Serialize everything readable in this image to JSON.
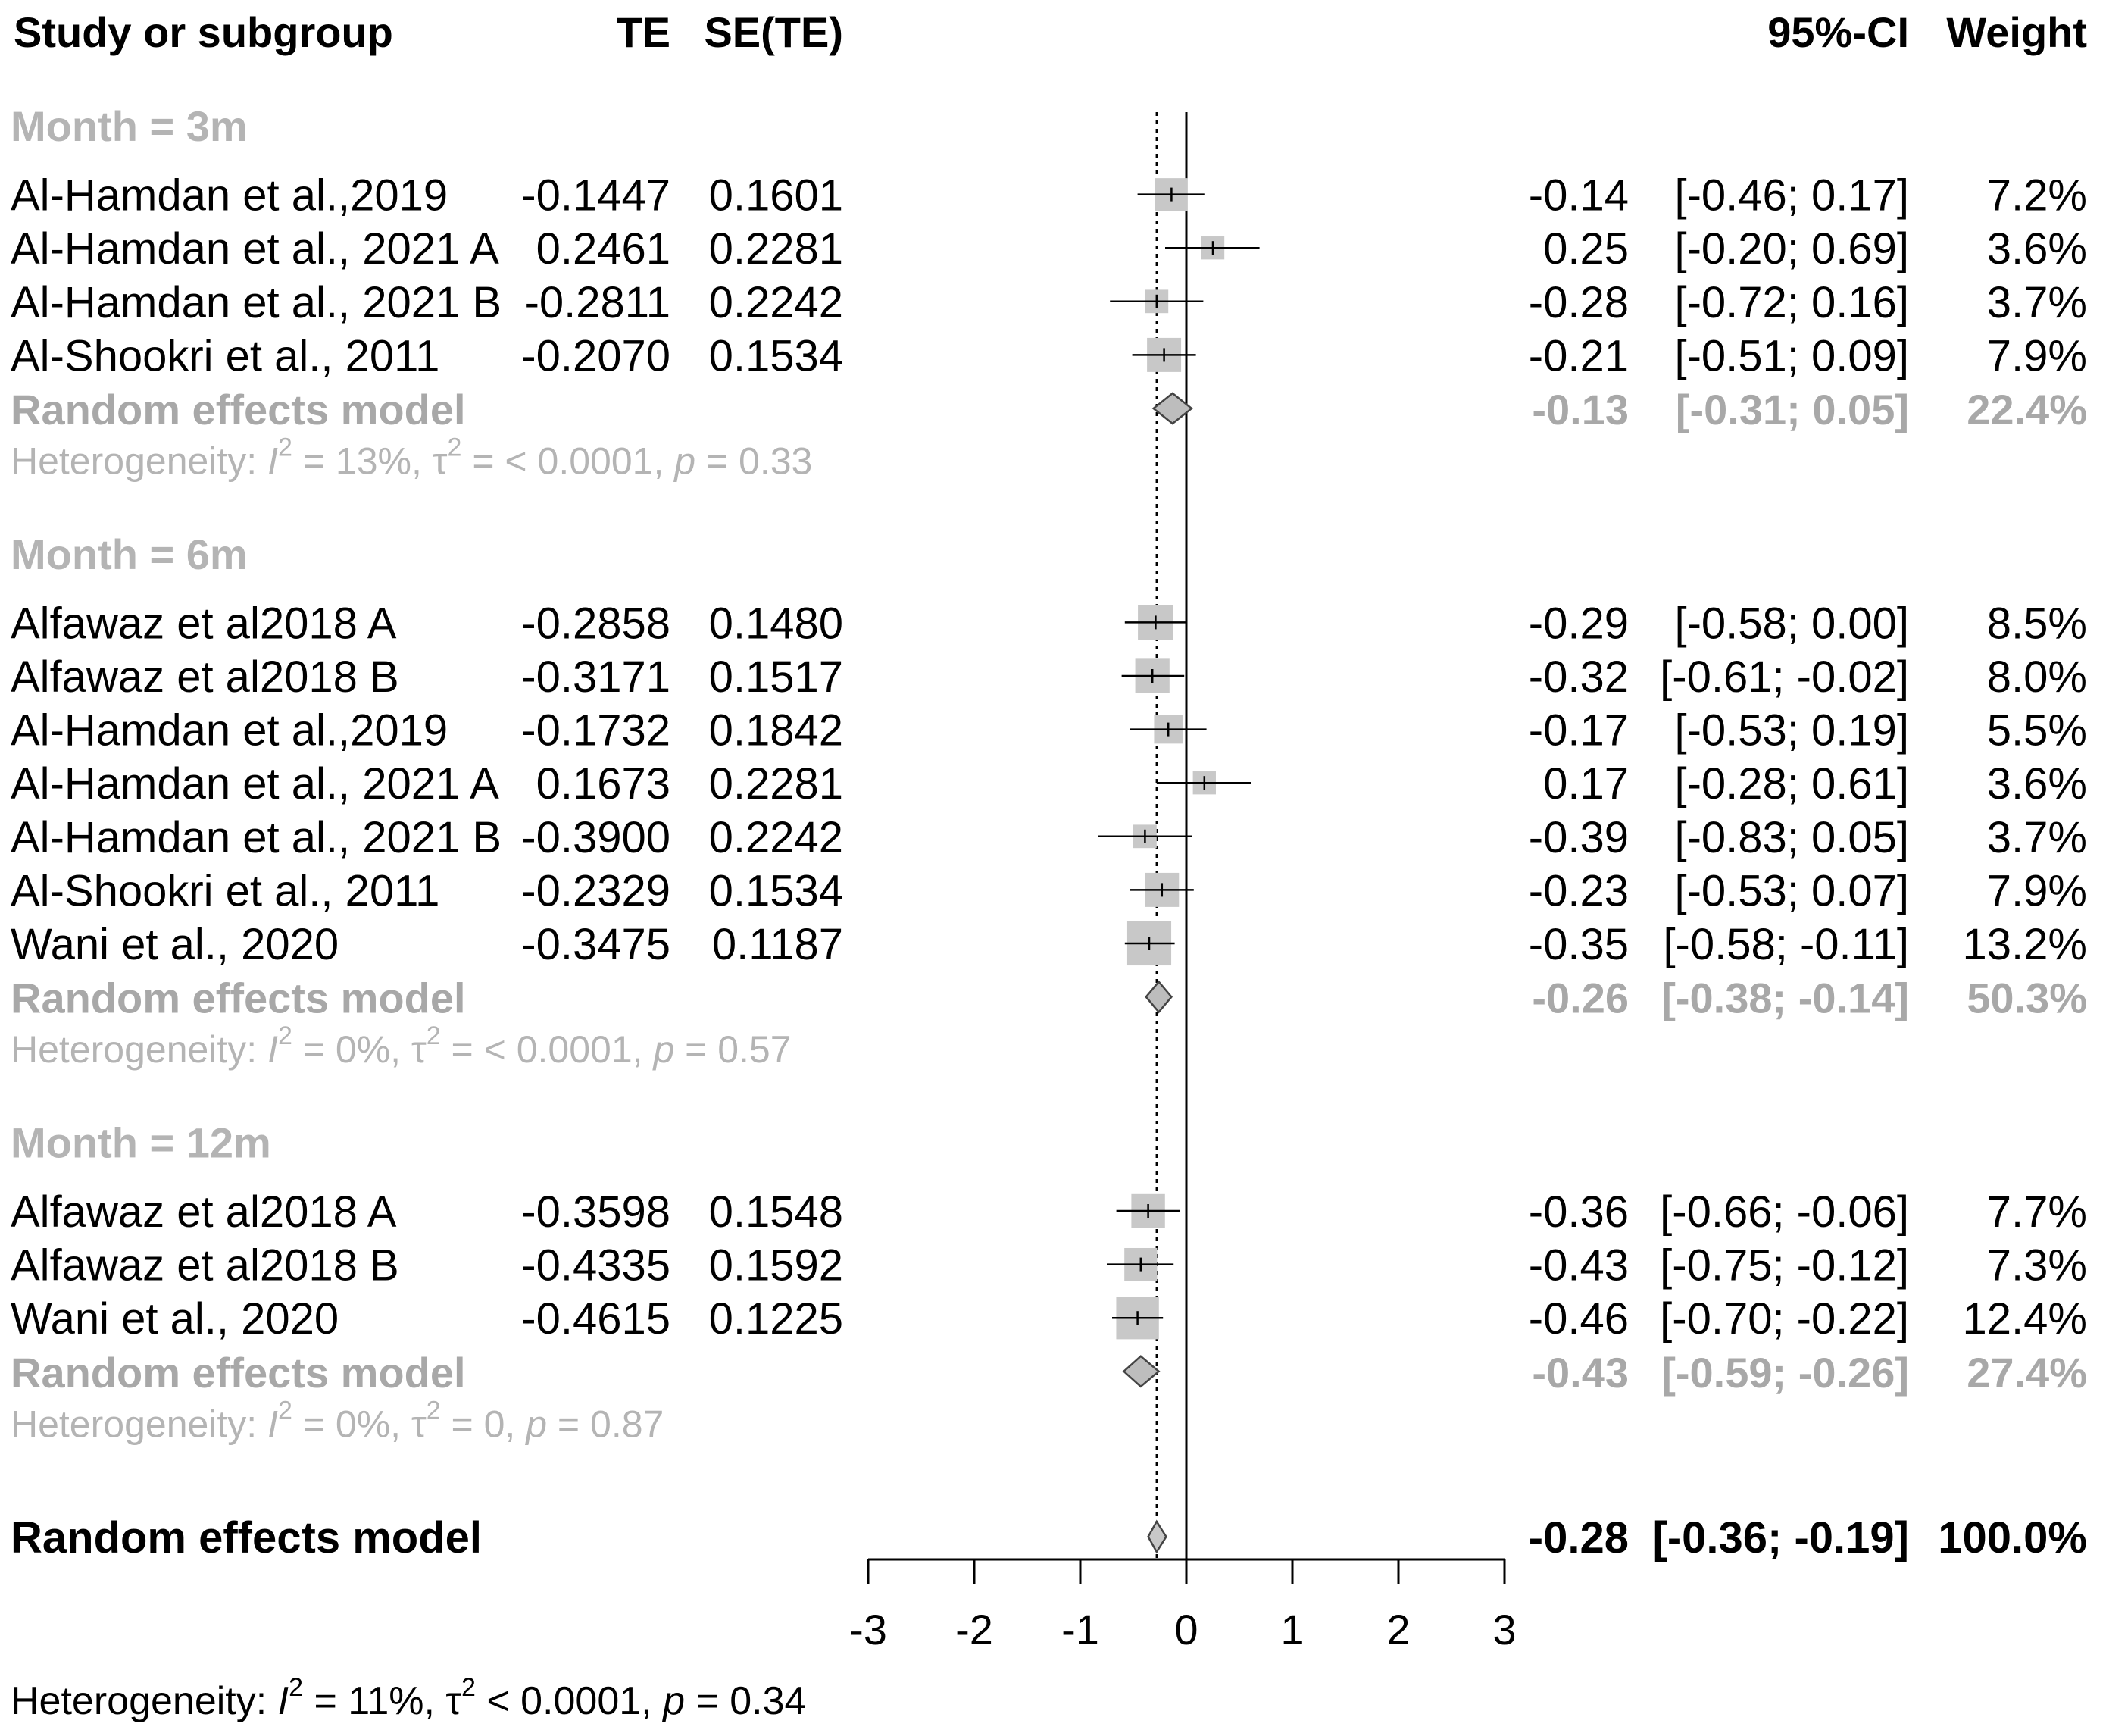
{
  "chart_data": {
    "type": "forest",
    "columns": {
      "study": "Study or subgroup",
      "te": "TE",
      "se": "SE(TE)",
      "ci": "95%-CI",
      "weight": "Weight"
    },
    "axis": {
      "range": [
        -3,
        3
      ],
      "ticks": [
        "-3",
        "-2",
        "-1",
        "0",
        "1",
        "2",
        "3"
      ],
      "reference_line": 0,
      "pooled_line": -0.28
    },
    "subgroups": [
      {
        "label": "Month = 3m",
        "studies": [
          {
            "name": "Al-Hamdan et al.,2019",
            "te": "-0.1447",
            "se": "0.1601",
            "est": "-0.14",
            "ci": "[-0.46;  0.17]",
            "weight": "7.2%",
            "mean": -0.14,
            "lo": -0.46,
            "hi": 0.17,
            "w": 7.2
          },
          {
            "name": "Al-Hamdan et al., 2021 A",
            "te": "0.2461",
            "se": "0.2281",
            "est": "0.25",
            "ci": "[-0.20;  0.69]",
            "weight": "3.6%",
            "mean": 0.25,
            "lo": -0.2,
            "hi": 0.69,
            "w": 3.6
          },
          {
            "name": "Al-Hamdan et al., 2021 B",
            "te": "-0.2811",
            "se": "0.2242",
            "est": "-0.28",
            "ci": "[-0.72;  0.16]",
            "weight": "3.7%",
            "mean": -0.28,
            "lo": -0.72,
            "hi": 0.16,
            "w": 3.7
          },
          {
            "name": "Al-Shookri et al., 2011",
            "te": "-0.2070",
            "se": "0.1534",
            "est": "-0.21",
            "ci": "[-0.51;  0.09]",
            "weight": "7.9%",
            "mean": -0.21,
            "lo": -0.51,
            "hi": 0.09,
            "w": 7.9
          }
        ],
        "pooled": {
          "label": "Random effects model",
          "est": "-0.13",
          "ci": "[-0.31;  0.05]",
          "weight": "22.4%",
          "mean": -0.13,
          "lo": -0.31,
          "hi": 0.05
        },
        "heterogeneity": {
          "prefix": "Heterogeneity: ",
          "I2": " = 13%, ",
          "tau2": " = < 0.0001, ",
          "p": " = 0.33"
        }
      },
      {
        "label": "Month = 6m",
        "studies": [
          {
            "name": "Alfawaz et al2018 A",
            "te": "-0.2858",
            "se": "0.1480",
            "est": "-0.29",
            "ci": "[-0.58;  0.00]",
            "weight": "8.5%",
            "mean": -0.29,
            "lo": -0.58,
            "hi": 0.0,
            "w": 8.5
          },
          {
            "name": "Alfawaz et al2018 B",
            "te": "-0.3171",
            "se": "0.1517",
            "est": "-0.32",
            "ci": "[-0.61; -0.02]",
            "weight": "8.0%",
            "mean": -0.32,
            "lo": -0.61,
            "hi": -0.02,
            "w": 8.0
          },
          {
            "name": "Al-Hamdan et al.,2019",
            "te": "-0.1732",
            "se": "0.1842",
            "est": "-0.17",
            "ci": "[-0.53;  0.19]",
            "weight": "5.5%",
            "mean": -0.17,
            "lo": -0.53,
            "hi": 0.19,
            "w": 5.5
          },
          {
            "name": "Al-Hamdan et al., 2021 A",
            "te": "0.1673",
            "se": "0.2281",
            "est": "0.17",
            "ci": "[-0.28;  0.61]",
            "weight": "3.6%",
            "mean": 0.17,
            "lo": -0.28,
            "hi": 0.61,
            "w": 3.6
          },
          {
            "name": "Al-Hamdan et al., 2021 B",
            "te": "-0.3900",
            "se": "0.2242",
            "est": "-0.39",
            "ci": "[-0.83;  0.05]",
            "weight": "3.7%",
            "mean": -0.39,
            "lo": -0.83,
            "hi": 0.05,
            "w": 3.7
          },
          {
            "name": "Al-Shookri et al., 2011",
            "te": "-0.2329",
            "se": "0.1534",
            "est": "-0.23",
            "ci": "[-0.53;  0.07]",
            "weight": "7.9%",
            "mean": -0.23,
            "lo": -0.53,
            "hi": 0.07,
            "w": 7.9
          },
          {
            "name": "Wani et al., 2020",
            "te": "-0.3475",
            "se": "0.1187",
            "est": "-0.35",
            "ci": "[-0.58; -0.11]",
            "weight": "13.2%",
            "mean": -0.35,
            "lo": -0.58,
            "hi": -0.11,
            "w": 13.2
          }
        ],
        "pooled": {
          "label": "Random effects model",
          "est": "-0.26",
          "ci": "[-0.38; -0.14]",
          "weight": "50.3%",
          "mean": -0.26,
          "lo": -0.38,
          "hi": -0.14
        },
        "heterogeneity": {
          "prefix": "Heterogeneity: ",
          "I2": " = 0%, ",
          "tau2": " = < 0.0001, ",
          "p": " = 0.57"
        }
      },
      {
        "label": "Month = 12m",
        "studies": [
          {
            "name": "Alfawaz et al2018 A",
            "te": "-0.3598",
            "se": "0.1548",
            "est": "-0.36",
            "ci": "[-0.66; -0.06]",
            "weight": "7.7%",
            "mean": -0.36,
            "lo": -0.66,
            "hi": -0.06,
            "w": 7.7
          },
          {
            "name": "Alfawaz et al2018 B",
            "te": "-0.4335",
            "se": "0.1592",
            "est": "-0.43",
            "ci": "[-0.75; -0.12]",
            "weight": "7.3%",
            "mean": -0.43,
            "lo": -0.75,
            "hi": -0.12,
            "w": 7.3
          },
          {
            "name": "Wani et al., 2020",
            "te": "-0.4615",
            "se": "0.1225",
            "est": "-0.46",
            "ci": "[-0.70; -0.22]",
            "weight": "12.4%",
            "mean": -0.46,
            "lo": -0.7,
            "hi": -0.22,
            "w": 12.4
          }
        ],
        "pooled": {
          "label": "Random effects model",
          "est": "-0.43",
          "ci": "[-0.59; -0.26]",
          "weight": "27.4%",
          "mean": -0.43,
          "lo": -0.59,
          "hi": -0.26
        },
        "heterogeneity": {
          "prefix": "Heterogeneity: ",
          "I2": " = 0%, ",
          "tau2": " = 0, ",
          "p": " = 0.87"
        }
      }
    ],
    "overall": {
      "label": "Random effects model",
      "est": "-0.28",
      "ci": "[-0.36; -0.19]",
      "weight": "100.0%",
      "mean": -0.28,
      "lo": -0.36,
      "hi": -0.19
    },
    "overall_heterogeneity": {
      "prefix": "Heterogeneity: ",
      "I2": " = 11%, ",
      "tau2": " < 0.0001, ",
      "p": " = 0.34"
    },
    "symbols": {
      "I2_name": "I",
      "tau_name": "τ",
      "p_name": "p",
      "sup": "2"
    },
    "colors": {
      "box": "#c8c8c8",
      "diamond": "#bdbdbd",
      "subgroup_text": "#b4b4b4"
    }
  }
}
